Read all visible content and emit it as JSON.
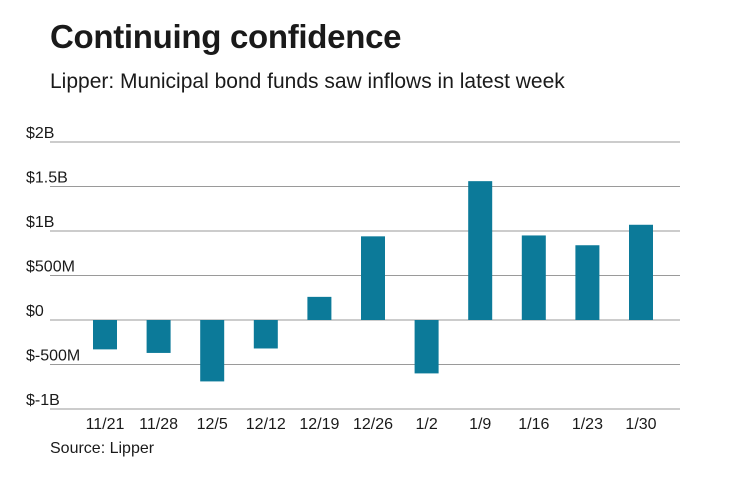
{
  "chart_data": {
    "type": "bar",
    "title": "Continuing confidence",
    "subtitle": "Lipper: Municipal bond funds saw inflows in latest week",
    "source": "Source: Lipper",
    "categories": [
      "11/21",
      "11/28",
      "12/5",
      "12/12",
      "12/19",
      "12/26",
      "1/2",
      "1/9",
      "1/16",
      "1/23",
      "1/30"
    ],
    "values": [
      -0.33,
      -0.37,
      -0.69,
      -0.32,
      0.26,
      0.94,
      -0.6,
      1.56,
      0.95,
      0.84,
      1.07
    ],
    "value_unit": "$B",
    "ylim": [
      -1,
      2
    ],
    "yticks": [
      {
        "value": 2,
        "label": "$2B"
      },
      {
        "value": 1.5,
        "label": "$1.5B"
      },
      {
        "value": 1,
        "label": "$1B"
      },
      {
        "value": 0.5,
        "label": "$500M"
      },
      {
        "value": 0,
        "label": "$0"
      },
      {
        "value": -0.5,
        "label": "$-500M"
      },
      {
        "value": -1,
        "label": "$-1B"
      }
    ],
    "grid": true,
    "bar_color": "#0c7a99",
    "grid_color": "#9a9a9a"
  }
}
